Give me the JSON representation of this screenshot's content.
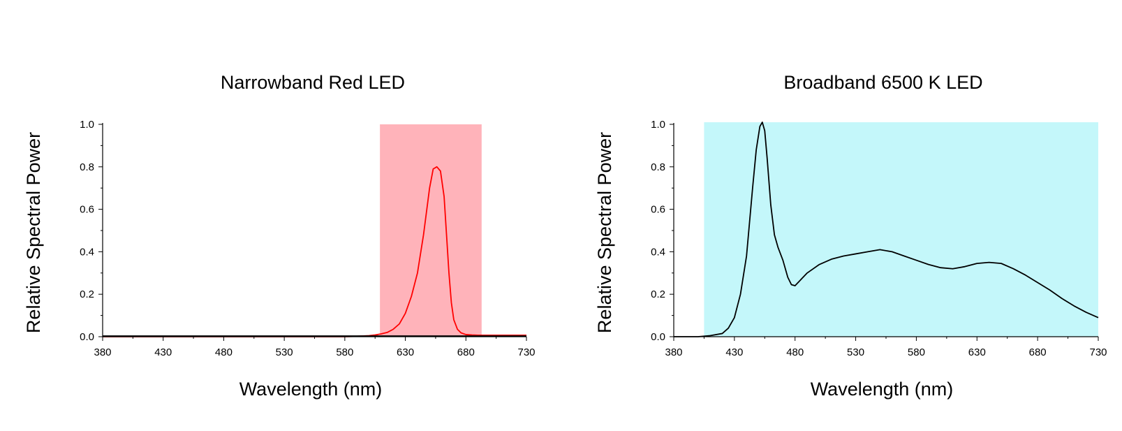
{
  "chart_data": [
    {
      "type": "line",
      "title": "Narrowband Red LED",
      "xlabel": "Wavelength (nm)",
      "ylabel": "Relative Spectral Power",
      "xlim": [
        380,
        730
      ],
      "ylim": [
        0,
        1.0
      ],
      "xticks": [
        "380",
        "430",
        "480",
        "530",
        "580",
        "630",
        "680",
        "730"
      ],
      "yticks": [
        "0.0",
        "0.2",
        "0.4",
        "0.6",
        "0.8",
        "1.0"
      ],
      "grid": false,
      "band": {
        "x_start": 609,
        "x_end": 693,
        "y_top": 1.0,
        "color": "#ffb3ba"
      },
      "series": [
        {
          "color": "#ff0000",
          "x": [
            380,
            580,
            590,
            600,
            605,
            610,
            615,
            620,
            625,
            630,
            635,
            640,
            645,
            650,
            653,
            656,
            659,
            662,
            664,
            666,
            668,
            670,
            673,
            676,
            680,
            685,
            690,
            700,
            730
          ],
          "y": [
            0.0,
            0.0,
            0.002,
            0.005,
            0.008,
            0.013,
            0.02,
            0.035,
            0.06,
            0.11,
            0.19,
            0.3,
            0.48,
            0.7,
            0.79,
            0.8,
            0.78,
            0.66,
            0.48,
            0.3,
            0.16,
            0.08,
            0.035,
            0.018,
            0.01,
            0.008,
            0.007,
            0.007,
            0.007
          ]
        }
      ],
      "baseline_color": "#000000"
    },
    {
      "type": "line",
      "title": "Broadband 6500 K LED",
      "xlabel": "Wavelength (nm)",
      "ylabel": "Relative Spectral Power",
      "xlim": [
        380,
        730
      ],
      "ylim": [
        0,
        1.0
      ],
      "xticks": [
        "380",
        "430",
        "480",
        "530",
        "580",
        "630",
        "680",
        "730"
      ],
      "yticks": [
        "0.0",
        "0.2",
        "0.4",
        "0.6",
        "0.8",
        "1.0"
      ],
      "grid": false,
      "band": {
        "x_start": 405,
        "x_end": 730,
        "y_top": 1.01,
        "color": "#c4f7fa"
      },
      "series": [
        {
          "color": "#000000",
          "x": [
            380,
            400,
            410,
            420,
            425,
            430,
            435,
            440,
            445,
            448,
            451,
            453,
            455,
            457,
            460,
            463,
            466,
            470,
            474,
            477,
            480,
            485,
            490,
            500,
            510,
            520,
            530,
            540,
            550,
            560,
            570,
            580,
            590,
            600,
            610,
            620,
            630,
            640,
            650,
            660,
            670,
            680,
            690,
            700,
            710,
            720,
            730
          ],
          "y": [
            0.0,
            0.0,
            0.005,
            0.015,
            0.04,
            0.09,
            0.2,
            0.38,
            0.7,
            0.88,
            0.99,
            1.01,
            0.97,
            0.84,
            0.62,
            0.48,
            0.42,
            0.36,
            0.28,
            0.245,
            0.24,
            0.27,
            0.3,
            0.34,
            0.365,
            0.38,
            0.39,
            0.4,
            0.41,
            0.4,
            0.38,
            0.36,
            0.34,
            0.325,
            0.32,
            0.33,
            0.345,
            0.35,
            0.345,
            0.32,
            0.29,
            0.255,
            0.22,
            0.18,
            0.145,
            0.115,
            0.09
          ]
        }
      ]
    }
  ]
}
